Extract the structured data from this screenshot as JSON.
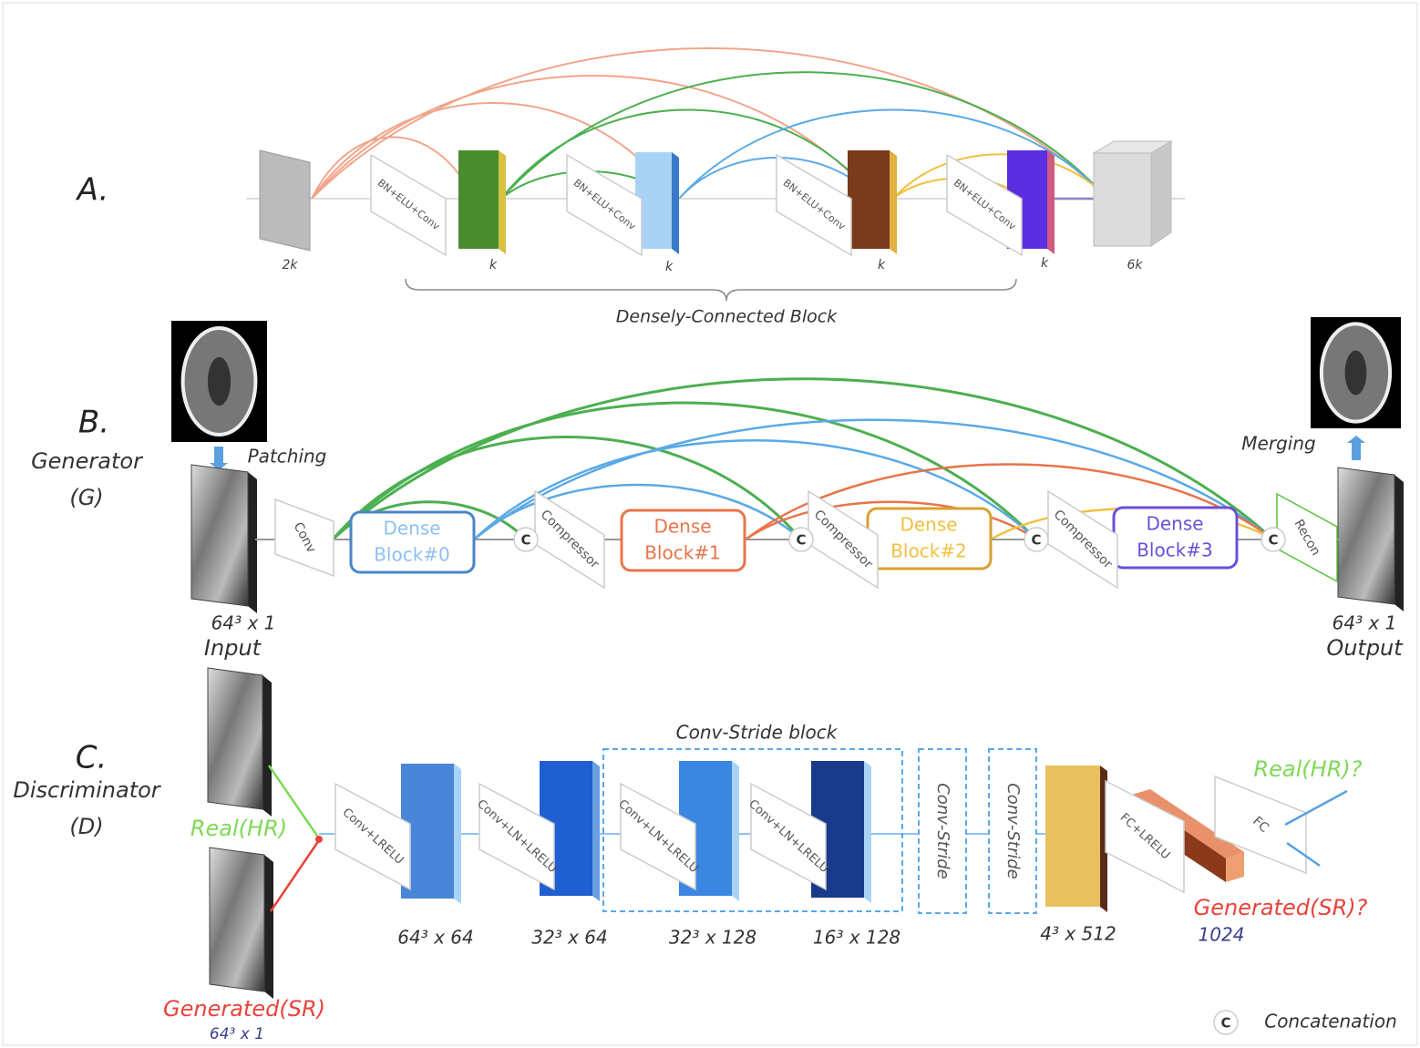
{
  "section_a": {
    "label": "A.",
    "layers": [
      "BN+ELU+Conv",
      "BN+ELU+Conv",
      "BN+ELU+Conv",
      "BN+ELU+Conv"
    ],
    "sizes": [
      "2k",
      "k",
      "k",
      "k",
      "k",
      "6k"
    ],
    "brace_label": "Densely-Connected Block"
  },
  "section_b": {
    "label": "B.",
    "name": "Generator",
    "abbr": "(G)",
    "patching": "Patching",
    "merging": "Merging",
    "conv": "Conv",
    "dense_blocks": [
      {
        "line1": "Dense",
        "line2": "Block#0"
      },
      {
        "line1": "Dense",
        "line2": "Block#1"
      },
      {
        "line1": "Dense",
        "line2": "Block#2"
      },
      {
        "line1": "Dense",
        "line2": "Block#3"
      }
    ],
    "compressors": [
      "Compressor",
      "Compressor",
      "Compressor"
    ],
    "concat": [
      "C",
      "C",
      "C",
      "C"
    ],
    "recon": "Recon",
    "input_size": "64³ x 1",
    "input_label": "Input",
    "output_size": "64³ x 1",
    "output_label": "Output"
  },
  "section_c": {
    "label": "C.",
    "name": "Discriminator",
    "abbr": "(D)",
    "real": "Real(HR)",
    "generated": "Generated(SR)",
    "generated_size": "64³ x 1",
    "layers": [
      "Conv+LRELU",
      "Conv+LN+LRELU",
      "Conv+LN+LRELU",
      "Conv+LN+LRELU"
    ],
    "sizes": [
      "64³ x 64",
      "32³ x 64",
      "32³ x 128",
      "16³ x 128",
      "4³ x 512",
      "1024"
    ],
    "block_label": "Conv-Stride block",
    "strides": [
      "Conv-Stride",
      "Conv-Stride"
    ],
    "fc_lrelu": "FC+LRELU",
    "fc": "FC",
    "out_real": "Real(HR)?",
    "out_generated": "Generated(SR)?"
  },
  "legend": {
    "symbol": "C",
    "label": "Concatenation"
  }
}
